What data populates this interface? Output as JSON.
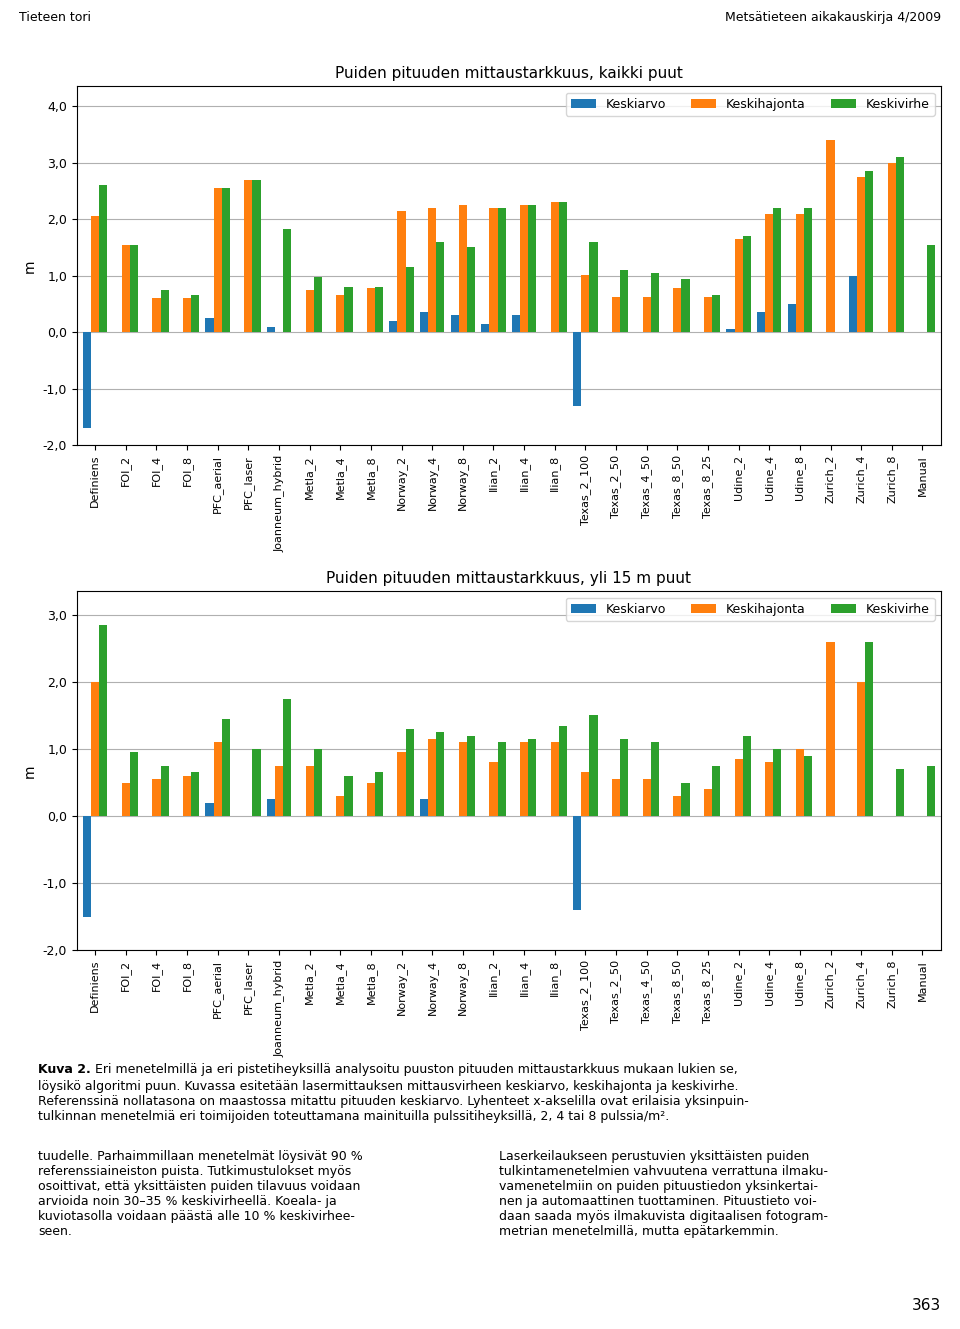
{
  "chart_data": [
    {
      "type": "bar",
      "title": "Puiden pituuden mittaustarkkuus, kaikki puut",
      "ylabel": "m",
      "categories": [
        "Definiens",
        "FOI_2",
        "FOI_4",
        "FOI_8",
        "PFC_aerial",
        "PFC_laser",
        "Joanneum_hybrid",
        "Metla_2",
        "Metla_4",
        "Metla_8",
        "Norway_2",
        "Norway_4",
        "Norway_8",
        "Ilian_2",
        "Ilian_4",
        "Ilian_8",
        "Texas_2_100",
        "Texas_2_50",
        "Texas_4_50",
        "Texas_8_50",
        "Texas_8_25",
        "Udine_2",
        "Udine_4",
        "Udine_8",
        "Zurich_2",
        "Zurich_4",
        "Zurich_8",
        "Manual"
      ],
      "series": [
        {
          "name": "Keskiarvo",
          "values": [
            -1.7,
            0.0,
            0.0,
            0.0,
            0.25,
            0.0,
            0.1,
            0.0,
            0.0,
            0.0,
            0.2,
            0.35,
            0.3,
            0.15,
            0.3,
            0.0,
            -1.3,
            0.0,
            0.0,
            0.0,
            0.0,
            0.05,
            0.35,
            0.5,
            0.0,
            1.0,
            0.0,
            0.0
          ]
        },
        {
          "name": "Keskihajonta",
          "values": [
            2.05,
            1.55,
            0.6,
            0.6,
            2.55,
            2.7,
            0.0,
            0.75,
            0.65,
            0.78,
            2.15,
            2.2,
            2.25,
            2.2,
            2.25,
            2.3,
            1.02,
            0.62,
            0.62,
            0.78,
            0.62,
            1.65,
            2.1,
            2.1,
            3.4,
            2.75,
            3.0,
            0.0
          ]
        },
        {
          "name": "Keskivirhe",
          "values": [
            2.6,
            1.55,
            0.75,
            0.65,
            2.55,
            2.7,
            1.83,
            0.98,
            0.8,
            0.8,
            1.15,
            1.6,
            1.5,
            2.2,
            2.25,
            2.3,
            1.6,
            1.1,
            1.05,
            0.95,
            0.65,
            1.7,
            2.2,
            2.2,
            0.0,
            2.85,
            3.1,
            1.55
          ]
        }
      ],
      "ylim": [
        -2.0,
        4.35
      ],
      "yticks": [
        {
          "value": -2.0,
          "label": "-2,0"
        },
        {
          "value": -1.0,
          "label": "-1,0"
        },
        {
          "value": 0.0,
          "label": "0,0"
        },
        {
          "value": 1.0,
          "label": "1,0"
        },
        {
          "value": 2.0,
          "label": "2,0"
        },
        {
          "value": 3.0,
          "label": "3,0"
        },
        {
          "value": 4.0,
          "label": "4,0"
        }
      ],
      "grid": true,
      "legend": "upper right"
    },
    {
      "type": "bar",
      "title": "Puiden pituuden mittaustarkkuus, yli 15 m puut",
      "ylabel": "m",
      "categories": [
        "Definiens",
        "FOI_2",
        "FOI_4",
        "FOI_8",
        "PFC_aerial",
        "PFC_laser",
        "Joanneum_hybrid",
        "Metla_2",
        "Metla_4",
        "Metla_8",
        "Norway_2",
        "Norway_4",
        "Norway_8",
        "Ilian_2",
        "Ilian_4",
        "Ilian_8",
        "Texas_2_100",
        "Texas_2_50",
        "Texas_4_50",
        "Texas_8_50",
        "Texas_8_25",
        "Udine_2",
        "Udine_4",
        "Udine_8",
        "Zurich_2",
        "Zurich_4",
        "Zurich_8",
        "Manual"
      ],
      "series": [
        {
          "name": "Keskiarvo",
          "values": [
            -1.5,
            0.0,
            0.0,
            0.0,
            0.2,
            0.0,
            0.25,
            0.0,
            0.0,
            0.0,
            0.0,
            0.25,
            0.0,
            0.0,
            0.0,
            0.0,
            -1.4,
            0.0,
            0.0,
            0.0,
            0.0,
            0.0,
            0.0,
            0.0,
            0.0,
            0.0,
            0.0,
            0.0
          ]
        },
        {
          "name": "Keskihajonta",
          "values": [
            2.0,
            0.5,
            0.55,
            0.6,
            1.1,
            0.0,
            0.75,
            0.75,
            0.3,
            0.5,
            0.95,
            1.15,
            1.1,
            0.8,
            1.1,
            1.1,
            0.65,
            0.55,
            0.55,
            0.3,
            0.4,
            0.85,
            0.8,
            1.0,
            2.6,
            2.0,
            0.0,
            0.0
          ]
        },
        {
          "name": "Keskivirhe",
          "values": [
            2.85,
            0.95,
            0.75,
            0.65,
            1.45,
            1.0,
            1.75,
            1.0,
            0.6,
            0.65,
            1.3,
            1.25,
            1.2,
            1.1,
            1.15,
            1.35,
            1.5,
            1.15,
            1.1,
            0.5,
            0.75,
            1.2,
            1.0,
            0.9,
            0.0,
            2.6,
            0.7,
            0.75
          ]
        }
      ],
      "ylim": [
        -2.0,
        3.35
      ],
      "yticks": [
        {
          "value": -2.0,
          "label": "-2,0"
        },
        {
          "value": -1.0,
          "label": "-1,0"
        },
        {
          "value": 0.0,
          "label": "0,0"
        },
        {
          "value": 1.0,
          "label": "1,0"
        },
        {
          "value": 2.0,
          "label": "2,0"
        },
        {
          "value": 3.0,
          "label": "3,0"
        }
      ],
      "grid": true,
      "legend": "upper right"
    }
  ],
  "annotations": [
    "Tieteen tori",
    "Metsätieteen aikakauskirja 4/2009",
    "Kuva 2.",
    " Eri menetelmillä ja eri pistetiheyksillä analysoitu puuston pituuden mittaustarkkuus mukaan lukien se,\nlöysikö algoritmi puun. Kuvassa esitetään lasermittauksen mittausvirheen keskiarvo, keskihajonta ja keskivirhe.\nReferenssinä nollatasona on maastossa mitattu pituuden keskiarvo. Lyhenteet x-akselilla ovat erilaisia yksinpuin-\ntulkinnan menetelmiä eri toimijoiden toteuttamana mainituilla pulssitiheyksillä, 2, 4 tai 8 pulssia/m².",
    "tuudelle. Parhaimmillaan menetelmät löysivät 90 %\nreferenssiaineiston puista. Tutkimustulokset myös\nosoittivat, että yksittäisten puiden tilavuus voidaan\narvioida noin 30–35 % keskivirheellä. Koeala- ja\nkuviotasolla voidaan päästä alle 10 % keskivirhee-\nseen.",
    "Laserkeilaukseen perustuvien yksittäisten puiden\ntulkintamenetelmien vahvuutena verrattuna ilmaku-\nvamenetelmiin on puiden pituustiedon yksinkertai-\nnen ja automaattinen tuottaminen. Pituustieto voi-\ndaan saada myös ilmakuvista digitaalisen fotogram-\nmetrian menetelmillä, mutta epätarkemmin.",
    "363"
  ]
}
